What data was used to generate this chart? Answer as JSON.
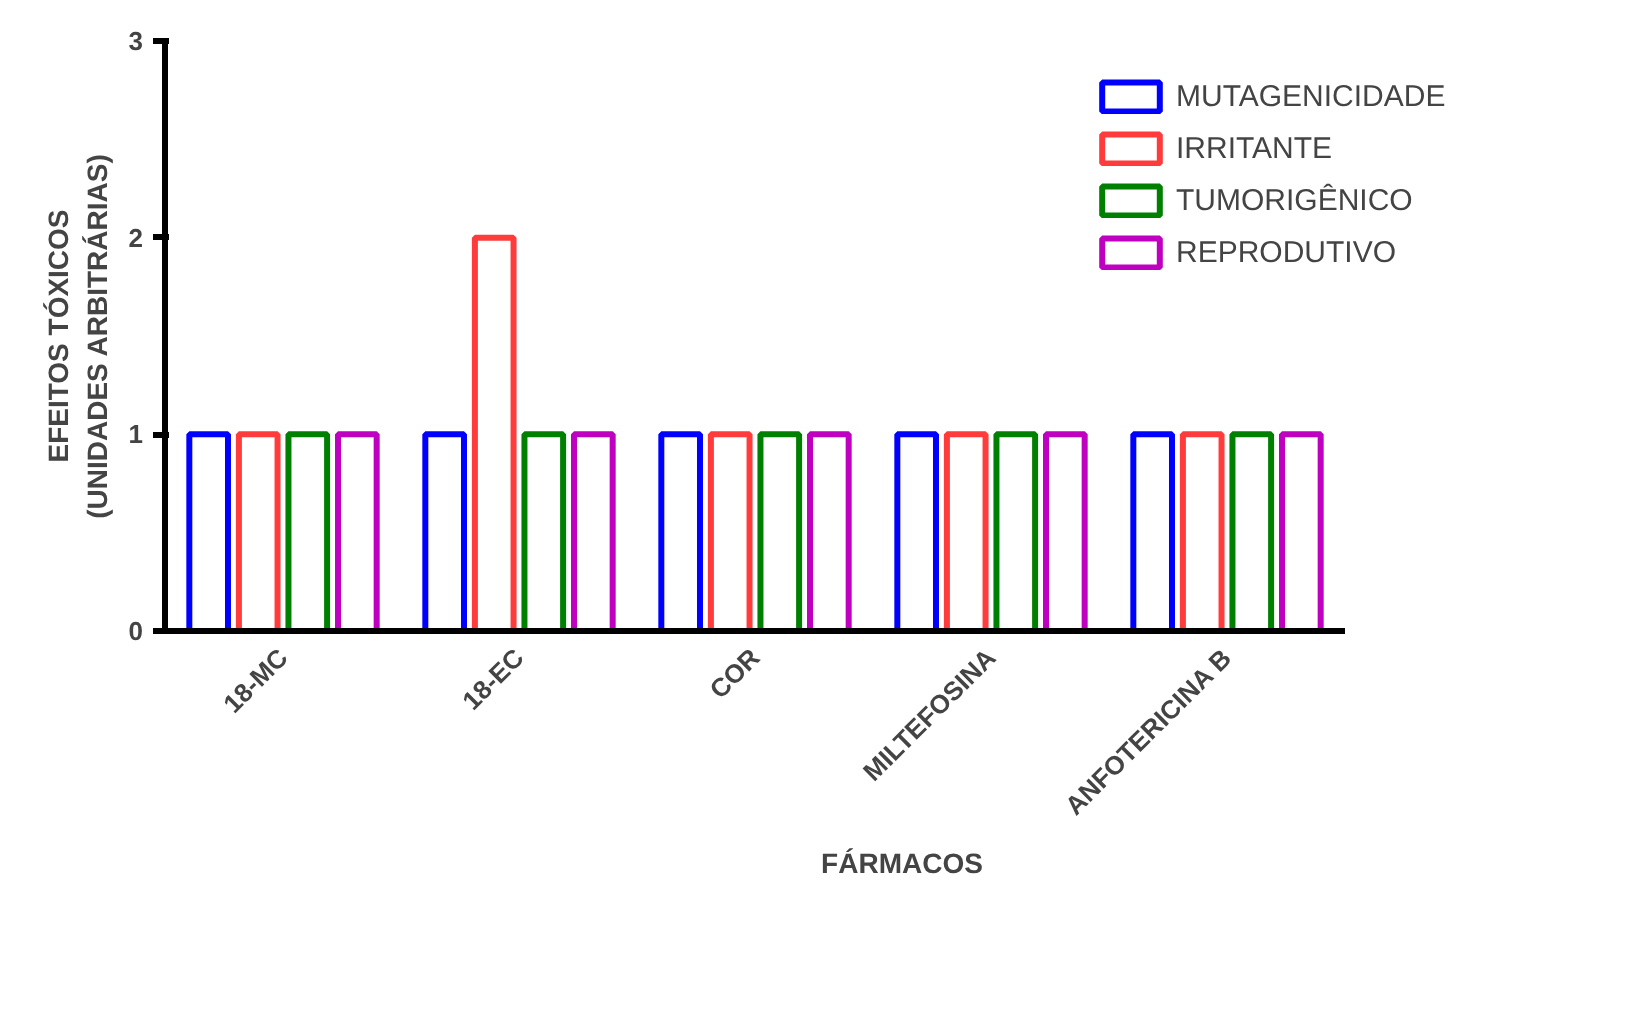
{
  "chart_data": {
    "type": "bar",
    "xlabel": "FÁRMACOS",
    "ylabel": "EFEITOS TÓXICOS\n(UNIDADES ARBITRÁRIAS)",
    "categories": [
      "18-MC",
      "18-EC",
      "COR",
      "MILTEFOSINA",
      "ANFOTERICINA B"
    ],
    "series": [
      {
        "name": "MUTAGENICIDADE",
        "color": "#0000ff",
        "values": [
          1,
          1,
          1,
          1,
          1
        ]
      },
      {
        "name": "IRRITANTE",
        "color": "#ff3b3b",
        "values": [
          1,
          2,
          1,
          1,
          1
        ]
      },
      {
        "name": "TUMORIGÊNICO",
        "color": "#008000",
        "values": [
          1,
          1,
          1,
          1,
          1
        ]
      },
      {
        "name": "REPRODUTIVO",
        "color": "#c000c0",
        "values": [
          1,
          1,
          1,
          1,
          1
        ]
      }
    ],
    "ylim": [
      0,
      3
    ],
    "yticks": [
      0,
      1,
      2,
      3
    ],
    "grid": false,
    "legend": "top right"
  }
}
